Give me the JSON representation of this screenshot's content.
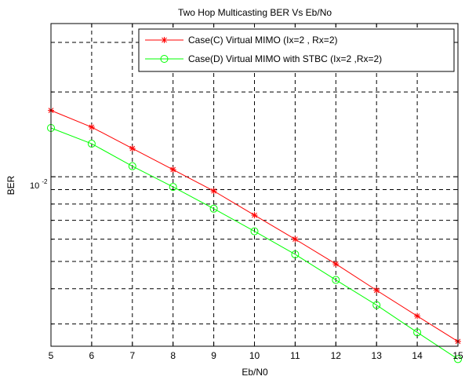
{
  "chart_data": {
    "type": "line",
    "title": "Two Hop Multicasting BER Vs Eb/No",
    "xlabel": "Eb/N0",
    "ylabel": "BER",
    "xlim": [
      5,
      15
    ],
    "ylim": [
      0.0025,
      0.035
    ],
    "yscale": "log",
    "grid": true,
    "legend_position": "top-right",
    "x": [
      5,
      6,
      7,
      8,
      9,
      10,
      11,
      12,
      13,
      14,
      15
    ],
    "x_ticks": [
      "5",
      "6",
      "7",
      "8",
      "9",
      "10",
      "11",
      "12",
      "13",
      "14",
      "15"
    ],
    "y_tick_label": {
      "base": "10",
      "exponent": "-2",
      "value": 0.01
    },
    "series": [
      {
        "name": "Case(C) Virtual MIMO (Ix=2 , Rx=2)",
        "color": "#ff0000",
        "marker": "asterisk",
        "values": [
          0.0172,
          0.015,
          0.0126,
          0.0106,
          0.0089,
          0.0073,
          0.006,
          0.0049,
          0.00395,
          0.0032,
          0.0026
        ]
      },
      {
        "name": "Case(D) Virtual MIMO with STBC (Ix=2 ,Rx=2)",
        "color": "#00ff00",
        "marker": "circle",
        "values": [
          0.0149,
          0.0131,
          0.0109,
          0.0092,
          0.0077,
          0.0064,
          0.0053,
          0.0043,
          0.0035,
          0.0028,
          0.00225
        ]
      }
    ]
  }
}
